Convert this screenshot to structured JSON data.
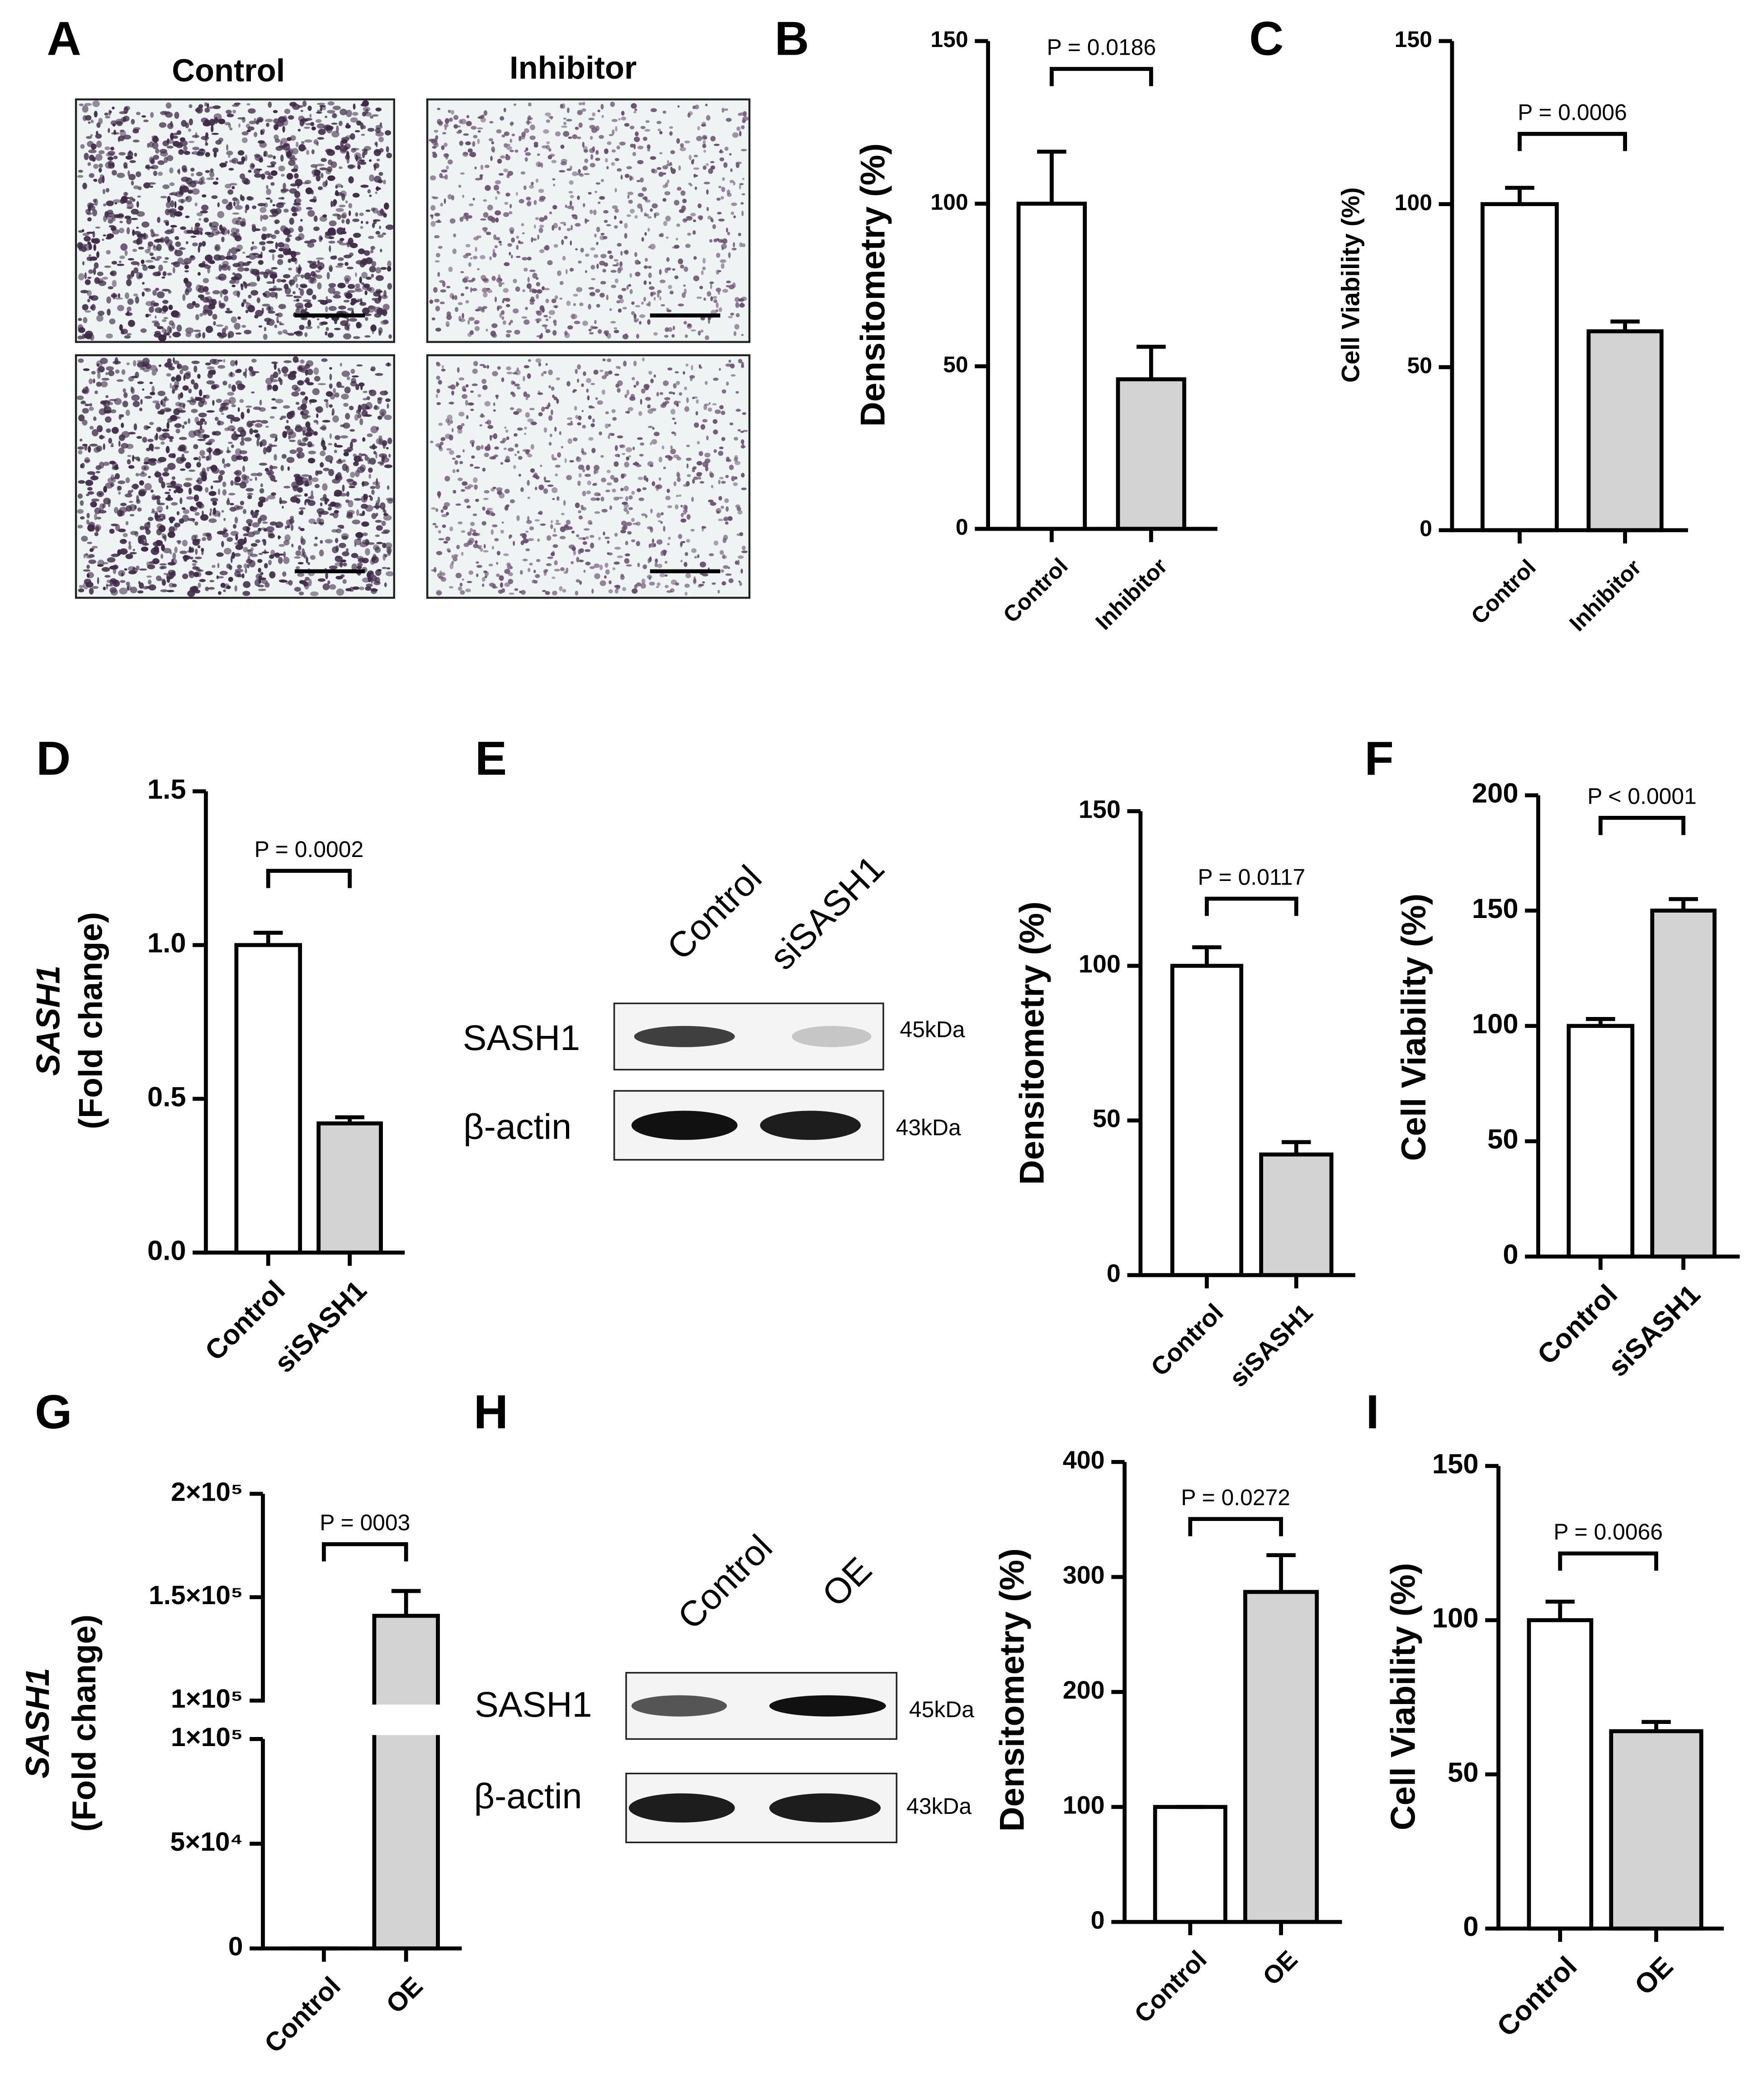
{
  "panel_a": {
    "label": "A",
    "columns": [
      "Control",
      "Inhibitor"
    ]
  },
  "blots": [
    {
      "lanes": [
        "Control",
        "siSASH1"
      ],
      "rows": [
        {
          "name": "SASH1",
          "size": "45kDa"
        },
        {
          "name": "β-actin",
          "size": "43kDa"
        }
      ]
    },
    {
      "lanes": [
        "Control",
        "OE"
      ],
      "rows": [
        {
          "name": "SASH1",
          "size": "45kDa"
        },
        {
          "name": "β-actin",
          "size": "43kDa"
        }
      ]
    }
  ],
  "panel_labels": {
    "E": "E",
    "H": "H"
  },
  "chart_data": [
    {
      "type": "bar",
      "label": "B",
      "ylabel": [
        "Densitometry (%)"
      ],
      "categories": [
        "Control",
        "Inhibitor"
      ],
      "values": [
        100,
        46
      ],
      "errors": [
        16,
        10
      ],
      "colors": [
        "#ffffff",
        "#d3d3d3"
      ],
      "ylim": [
        0,
        150
      ],
      "yticks": [
        0,
        50,
        100,
        150
      ],
      "annotation": "P = 0.0186"
    },
    {
      "type": "bar",
      "label": "C",
      "ylabel": [
        "Cell Viability (%)"
      ],
      "categories": [
        "Control",
        "Inhibitor"
      ],
      "values": [
        100,
        61
      ],
      "errors": [
        5,
        3
      ],
      "colors": [
        "#ffffff",
        "#d3d3d3"
      ],
      "ylim": [
        0,
        150
      ],
      "yticks": [
        0,
        50,
        100,
        150
      ],
      "annotation": "P = 0.0006"
    },
    {
      "type": "bar",
      "label": "D",
      "ylabel": [
        "SASH1",
        "(Fold change)"
      ],
      "categories": [
        "Control",
        "siSASH1"
      ],
      "values": [
        1.0,
        0.42
      ],
      "errors": [
        0.04,
        0.02
      ],
      "colors": [
        "#ffffff",
        "#d3d3d3"
      ],
      "ylim": [
        0,
        1.5
      ],
      "yticks": [
        {
          "value": 0,
          "label": "0.0"
        },
        0.5,
        {
          "value": 1,
          "label": "1.0"
        },
        1.5
      ],
      "annotation": "P = 0.0002"
    },
    {
      "type": "bar",
      "ylabel": [
        "Densitometry (%)"
      ],
      "categories": [
        "Control",
        "siSASH1"
      ],
      "values": [
        100,
        39
      ],
      "errors": [
        6,
        4
      ],
      "colors": [
        "#ffffff",
        "#d3d3d3"
      ],
      "ylim": [
        0,
        150
      ],
      "yticks": [
        0,
        50,
        100,
        150
      ],
      "annotation": "P = 0.0117"
    },
    {
      "type": "bar",
      "label": "F",
      "ylabel": [
        "Cell Viability (%)"
      ],
      "categories": [
        "Control",
        "siSASH1"
      ],
      "values": [
        100,
        150
      ],
      "errors": [
        3,
        5
      ],
      "colors": [
        "#ffffff",
        "#d3d3d3"
      ],
      "ylim": [
        0,
        200
      ],
      "yticks": [
        0,
        50,
        100,
        150,
        200
      ],
      "annotation": "P < 0.0001"
    },
    {
      "type": "broken_bar",
      "label": "G",
      "ylabel": [
        "SASH1",
        "(Fold change)"
      ],
      "categories": [
        "Control",
        "OE"
      ],
      "values": [
        1,
        141000
      ],
      "errors": [
        0,
        12000
      ],
      "colors": [
        "#ffffff",
        "#d3d3d3"
      ],
      "segments": [
        {
          "ylim": [
            0,
            100000
          ],
          "yticks": [
            0,
            {
              "value": 50000,
              "label": "5×10⁴"
            },
            {
              "value": 100000,
              "label": "1×10⁵"
            }
          ]
        },
        {
          "ylim": [
            100000,
            200000
          ],
          "yticks": [
            {
              "value": 100000,
              "label": "1×10⁵"
            },
            {
              "value": 150000,
              "label": "1.5×10⁵"
            },
            {
              "value": 200000,
              "label": "2×10⁵"
            }
          ]
        }
      ],
      "annotation": "P = 0003"
    },
    {
      "type": "bar",
      "ylabel": [
        "Densitometry (%)"
      ],
      "categories": [
        "Control",
        "OE"
      ],
      "values": [
        100,
        287
      ],
      "errors": [
        0,
        32
      ],
      "colors": [
        "#ffffff",
        "#d3d3d3"
      ],
      "ylim": [
        0,
        400
      ],
      "yticks": [
        0,
        100,
        200,
        300,
        400
      ],
      "annotation": "P = 0.0272"
    },
    {
      "type": "bar",
      "label": "I",
      "ylabel": [
        "Cell Viability (%)"
      ],
      "categories": [
        "Control",
        "OE"
      ],
      "values": [
        100,
        64
      ],
      "errors": [
        6,
        3
      ],
      "colors": [
        "#ffffff",
        "#d3d3d3"
      ],
      "ylim": [
        0,
        150
      ],
      "yticks": [
        0,
        50,
        100,
        150
      ],
      "annotation": "P = 0.0066"
    }
  ]
}
